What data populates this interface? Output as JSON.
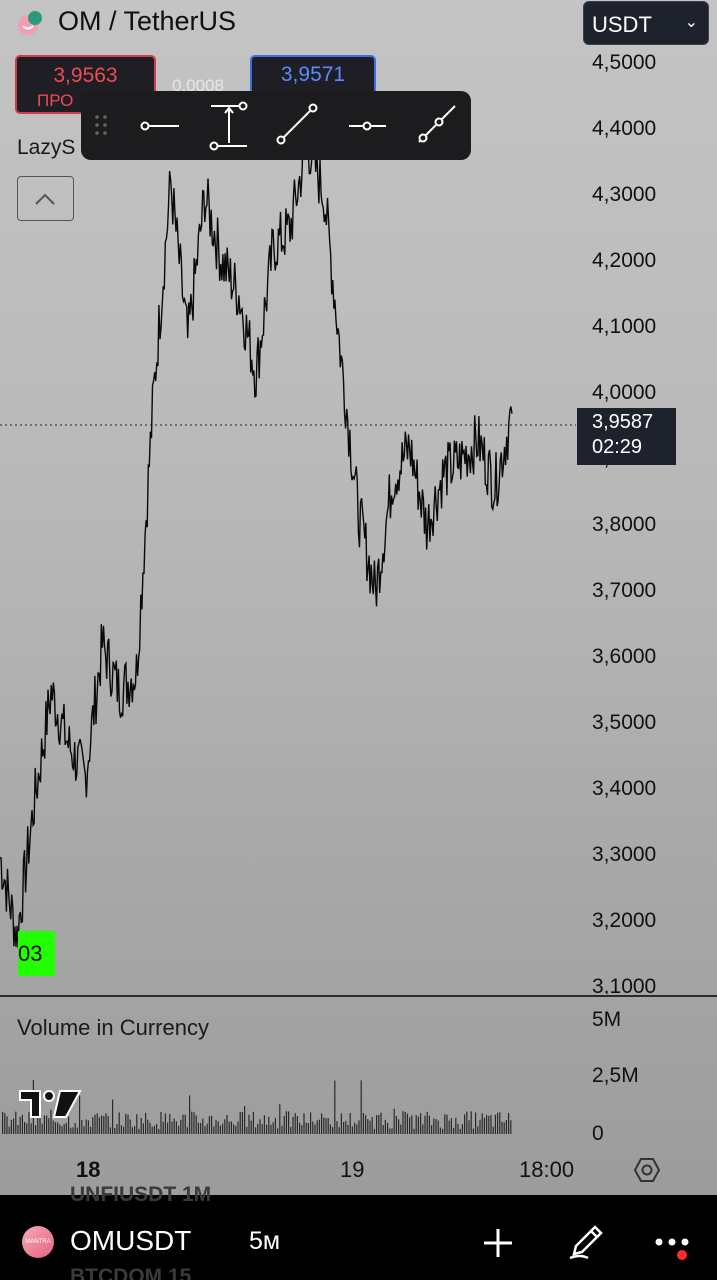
{
  "header": {
    "title": "OM / TetherUS",
    "currency": "USDT"
  },
  "trade": {
    "sell_price": "3,9563",
    "sell_label": "ПРО",
    "spread": "0.0008",
    "buy_price": "3,9571"
  },
  "indicator": {
    "label": "LazyS"
  },
  "drawing_tools": [
    {
      "name": "horizontal-line-tool-icon"
    },
    {
      "name": "vertical-range-tool-icon"
    },
    {
      "name": "trend-line-tool-icon"
    },
    {
      "name": "horizontal-ray-tool-icon"
    },
    {
      "name": "extended-line-tool-icon"
    }
  ],
  "price_axis": {
    "labels": [
      "4,5000",
      "4,4000",
      "4,3000",
      "4,2000",
      "4,1000",
      "4,0000",
      "3,9000",
      "3,8000",
      "3,7000",
      "3,6000",
      "3,5000",
      "3,4000",
      "3,3000",
      "3,2000",
      "3,1000"
    ],
    "current_price": "3,9587",
    "countdown": "02:29"
  },
  "marker": {
    "text": "03",
    "color": "#22ff00"
  },
  "volume": {
    "title": "Volume in Currency",
    "labels": [
      "5M",
      "2,5M",
      "0"
    ]
  },
  "time_axis": {
    "labels": [
      "18",
      "19",
      "18:00"
    ]
  },
  "bottom_bar": {
    "symbol": "OMUSDT",
    "interval": "5м",
    "logo_text": "MANTRA",
    "ghost_rows": [
      "UNFIUSDT  1M",
      "BTCDOM  15"
    ]
  },
  "chart_data": {
    "type": "line",
    "ylim": [
      3.1,
      4.5
    ],
    "x": [
      0,
      1,
      2,
      3,
      4,
      5,
      6,
      7,
      8,
      9,
      10,
      11,
      12,
      13,
      14,
      15,
      16,
      17,
      18,
      19,
      20,
      21,
      22,
      23,
      24,
      25,
      26,
      27,
      28,
      29,
      30
    ],
    "series": [
      {
        "values": [
          3.3,
          3.18,
          3.38,
          3.55,
          3.47,
          3.42,
          3.62,
          3.55,
          3.58,
          4.0,
          4.32,
          4.08,
          4.3,
          4.2,
          4.15,
          4.03,
          4.22,
          4.25,
          4.38,
          4.3,
          4.05,
          3.82,
          3.7,
          3.87,
          3.92,
          3.8,
          3.88,
          3.9,
          3.93,
          3.86,
          3.97
        ]
      }
    ]
  }
}
